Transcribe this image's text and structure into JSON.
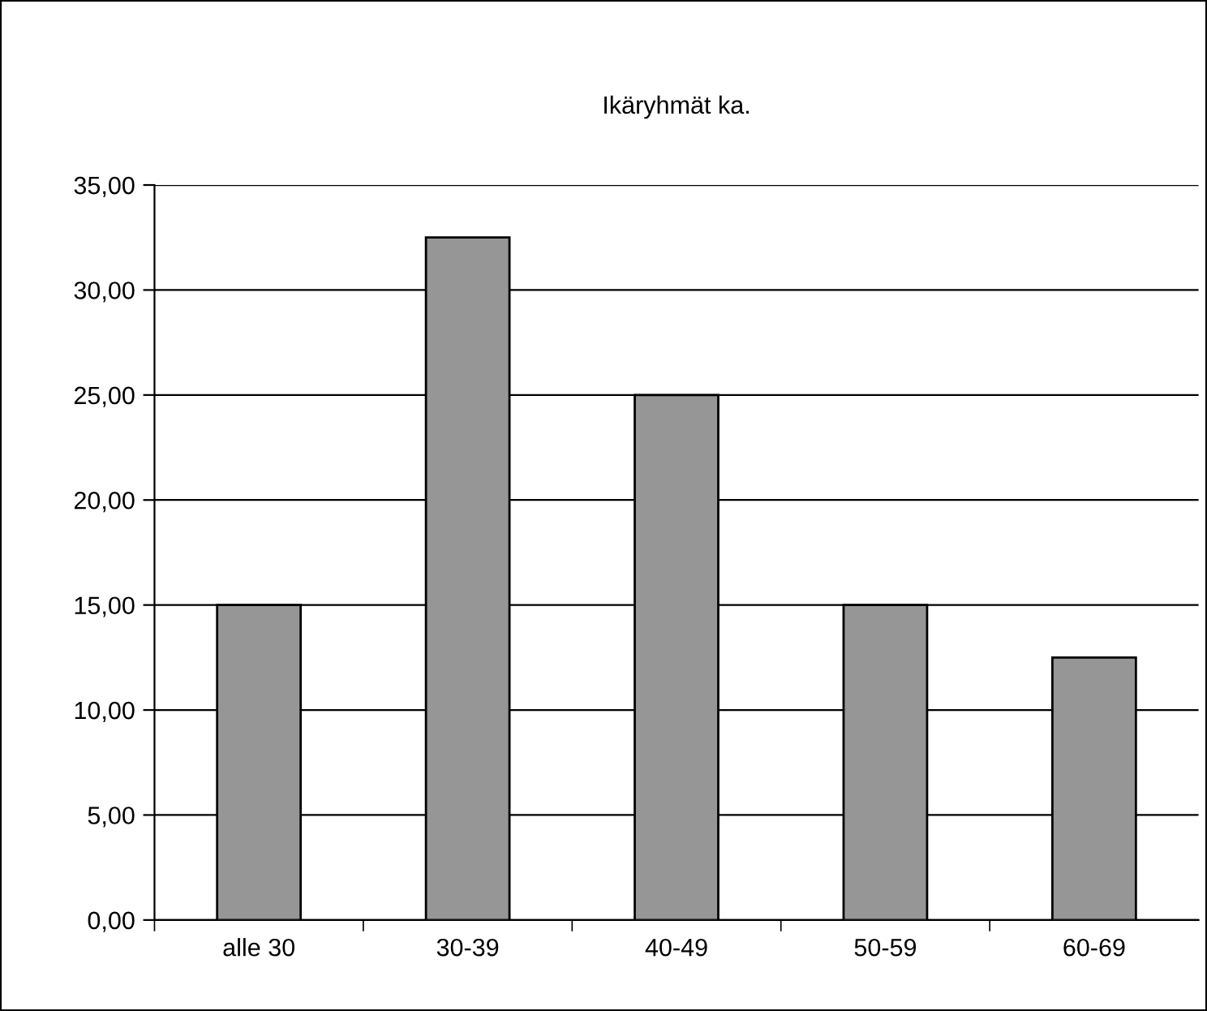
{
  "chart_data": {
    "type": "bar",
    "title": "Ikäryhmät ka.",
    "categories": [
      "alle 30",
      "30-39",
      "40-49",
      "50-59",
      "60-69"
    ],
    "values": [
      15,
      32.5,
      25,
      15,
      12.5
    ],
    "color": "#969696",
    "ylim": [
      0,
      35
    ],
    "yticks": [
      {
        "value": 0,
        "label": "0,00"
      },
      {
        "value": 5,
        "label": "5,00"
      },
      {
        "value": 10,
        "label": "10,00"
      },
      {
        "value": 15,
        "label": "15,00"
      },
      {
        "value": 20,
        "label": "20,00"
      },
      {
        "value": 25,
        "label": "25,00"
      },
      {
        "value": 30,
        "label": "30,00"
      },
      {
        "value": 35,
        "label": "35,00"
      }
    ],
    "grid": "y",
    "legend": false
  }
}
